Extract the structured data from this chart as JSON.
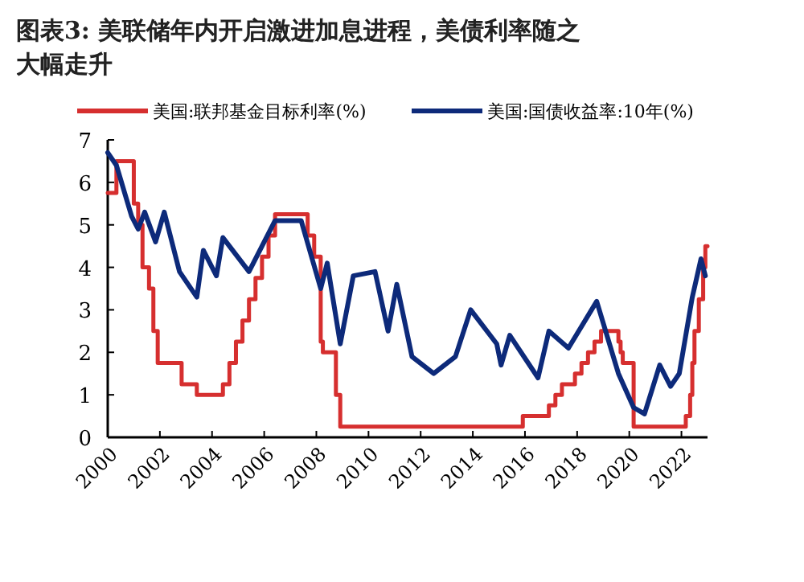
{
  "chart_data": {
    "type": "line",
    "title": "图表3:  美联储年内开启激进加息进程，美债利率随之大幅走升",
    "legend": "top",
    "xlim": [
      "2000",
      "2023"
    ],
    "xticks": [
      "2000",
      "2002",
      "2004",
      "2006",
      "2008",
      "2010",
      "2012",
      "2014",
      "2016",
      "2018",
      "2020",
      "2022"
    ],
    "ylim": [
      0,
      7
    ],
    "yticks": [
      0,
      1,
      2,
      3,
      4,
      5,
      6,
      7
    ],
    "series": [
      {
        "name": "美国:联邦基金目标利率(%)",
        "type": "step",
        "color": "#d62f2f",
        "x": [
          "2000-01",
          "2000-05",
          "2001-01",
          "2001-03",
          "2001-05",
          "2001-08",
          "2001-10",
          "2001-12",
          "2002-11",
          "2003-06",
          "2004-06",
          "2004-09",
          "2004-12",
          "2005-03",
          "2005-06",
          "2005-09",
          "2005-12",
          "2006-03",
          "2006-06",
          "2007-09",
          "2007-12",
          "2008-03",
          "2008-04",
          "2008-10",
          "2008-12",
          "2015-12",
          "2016-12",
          "2017-03",
          "2017-06",
          "2017-12",
          "2018-03",
          "2018-06",
          "2018-09",
          "2018-12",
          "2019-08",
          "2019-09",
          "2019-10",
          "2020-03",
          "2022-03",
          "2022-05",
          "2022-06",
          "2022-07",
          "2022-09",
          "2022-11",
          "2022-12",
          "2023-01"
        ],
        "values": [
          5.75,
          6.5,
          5.5,
          5.0,
          4.0,
          3.5,
          2.5,
          1.75,
          1.25,
          1.0,
          1.25,
          1.75,
          2.25,
          2.75,
          3.25,
          3.75,
          4.25,
          4.75,
          5.25,
          4.75,
          4.25,
          2.25,
          2.0,
          1.0,
          0.25,
          0.5,
          0.75,
          1.0,
          1.25,
          1.5,
          1.75,
          2.0,
          2.25,
          2.5,
          2.25,
          2.0,
          1.75,
          0.25,
          0.5,
          1.0,
          1.75,
          2.5,
          3.25,
          4.0,
          4.5,
          4.5
        ]
      },
      {
        "name": "美国:国债收益率:10年(%)",
        "color": "#0d2a7a",
        "x": [
          "2000-01",
          "2000-05",
          "2000-12",
          "2001-03",
          "2001-06",
          "2001-11",
          "2002-03",
          "2002-10",
          "2003-06",
          "2003-09",
          "2004-03",
          "2004-06",
          "2005-06",
          "2006-06",
          "2007-06",
          "2008-03",
          "2008-06",
          "2008-12",
          "2009-06",
          "2010-04",
          "2010-10",
          "2011-02",
          "2011-09",
          "2012-07",
          "2013-05",
          "2013-12",
          "2014-12",
          "2015-02",
          "2015-06",
          "2016-07",
          "2016-12",
          "2017-09",
          "2018-10",
          "2019-08",
          "2020-03",
          "2020-08",
          "2021-03",
          "2021-08",
          "2021-12",
          "2022-06",
          "2022-10",
          "2022-12"
        ],
        "values": [
          6.7,
          6.4,
          5.2,
          4.9,
          5.3,
          4.6,
          5.3,
          3.9,
          3.3,
          4.4,
          3.8,
          4.7,
          3.9,
          5.1,
          5.1,
          3.5,
          4.1,
          2.2,
          3.8,
          3.9,
          2.5,
          3.6,
          1.9,
          1.5,
          1.9,
          3.0,
          2.2,
          1.7,
          2.4,
          1.4,
          2.5,
          2.1,
          3.2,
          1.5,
          0.7,
          0.55,
          1.7,
          1.2,
          1.5,
          3.3,
          4.2,
          3.8
        ]
      }
    ]
  }
}
